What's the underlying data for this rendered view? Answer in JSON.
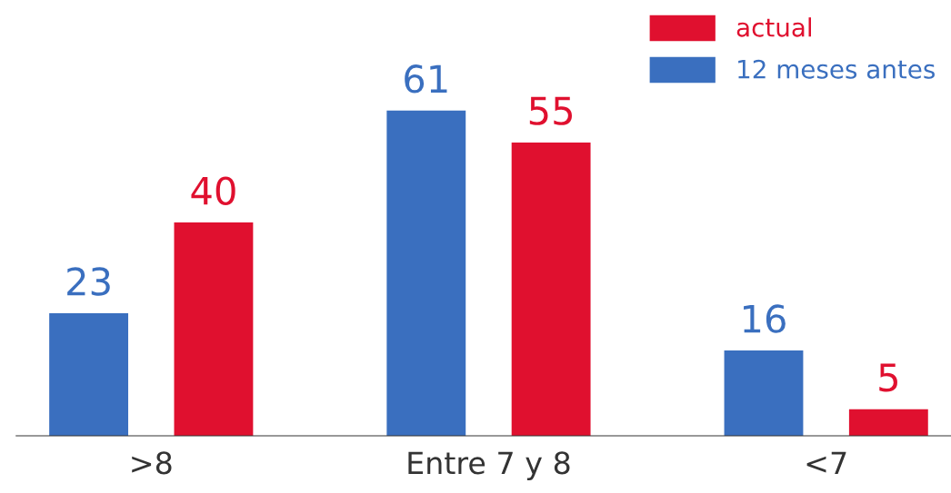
{
  "chart_data": {
    "type": "bar",
    "categories": [
      ">8",
      "Entre 7 y 8",
      "<7"
    ],
    "series": [
      {
        "name": "12 meses antes",
        "color": "#3a6fbf",
        "values": [
          23,
          61,
          16
        ]
      },
      {
        "name": "actual",
        "color": "#e0102f",
        "values": [
          40,
          55,
          5
        ]
      }
    ],
    "data_labels": true,
    "legend": "top right",
    "grid": false
  }
}
